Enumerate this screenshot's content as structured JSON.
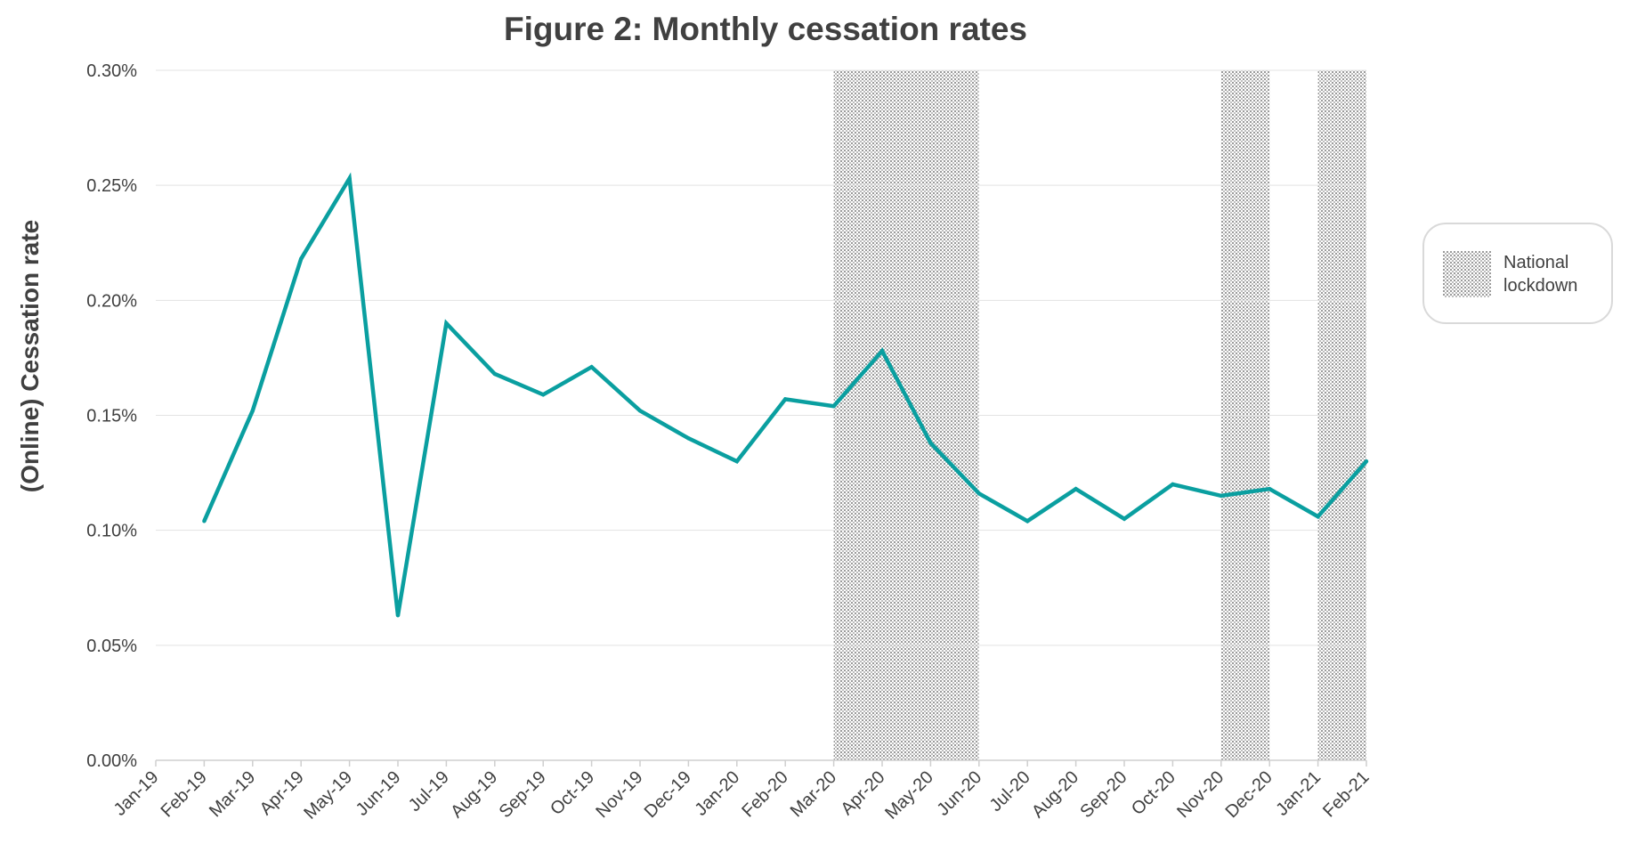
{
  "chart_data": {
    "type": "line",
    "title": "Figure 2: Monthly cessation rates",
    "xlabel": "",
    "ylabel": "(Online) Cessation rate",
    "ylim": [
      0,
      0.3
    ],
    "y_ticks": [
      "0.00%",
      "0.05%",
      "0.10%",
      "0.15%",
      "0.20%",
      "0.25%",
      "0.30%"
    ],
    "grid": true,
    "categories": [
      "Jan-19",
      "Feb-19",
      "Mar-19",
      "Apr-19",
      "May-19",
      "Jun-19",
      "Jul-19",
      "Aug-19",
      "Sep-19",
      "Oct-19",
      "Nov-19",
      "Dec-19",
      "Jan-20",
      "Feb-20",
      "Mar-20",
      "Apr-20",
      "May-20",
      "Jun-20",
      "Jul-20",
      "Aug-20",
      "Sep-20",
      "Oct-20",
      "Nov-20",
      "Dec-20",
      "Jan-21",
      "Feb-21"
    ],
    "series": [
      {
        "name": "",
        "color": "#0a9fa0",
        "values": [
          null,
          0.104,
          0.152,
          0.218,
          0.253,
          0.063,
          0.19,
          0.168,
          0.159,
          0.171,
          0.152,
          0.14,
          0.13,
          0.157,
          0.154,
          0.178,
          0.138,
          0.116,
          0.104,
          0.118,
          0.105,
          0.12,
          0.115,
          0.118,
          0.106,
          0.13
        ]
      }
    ],
    "shaded_periods": [
      {
        "start": "Mar-20",
        "end": "Jun-20"
      },
      {
        "start": "Nov-20",
        "end": "Dec-20"
      },
      {
        "start": "Jan-21",
        "end": "Feb-21"
      }
    ],
    "legend": {
      "position": "right",
      "items": [
        {
          "label": "National lockdown",
          "pattern": "dotted-grey"
        }
      ]
    }
  }
}
